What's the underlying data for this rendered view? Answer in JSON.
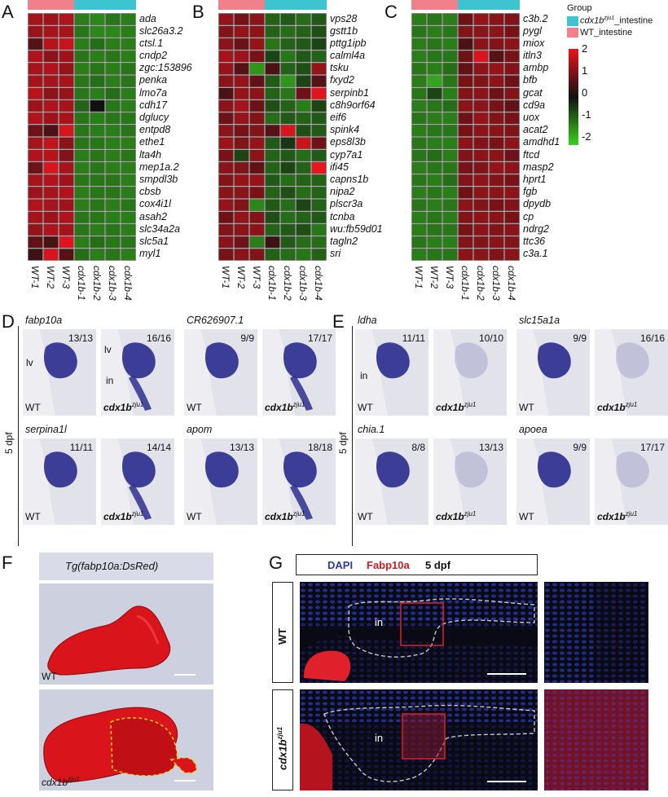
{
  "panels": {
    "A": "A",
    "B": "B",
    "C": "C",
    "D": "D",
    "E": "E",
    "F": "F",
    "G": "G"
  },
  "colors": {
    "mutant_group": "#3ec3d0",
    "wt_group": "#f0808a",
    "high": "#e8141e",
    "mid": "#111111",
    "low": "#3bd01e",
    "ish_stain": "#2e2f8f",
    "dsred": "#d9141a"
  },
  "legend": {
    "group_title": "Group",
    "mutant_label_prefix": "cdx1b",
    "mutant_label_sup": "zju1",
    "mutant_label_suffix": "_intestine",
    "wt_label": "WT_intestine",
    "scale_ticks": [
      "2",
      "1",
      "0",
      "-1",
      "-2"
    ]
  },
  "samples": [
    "WT-1",
    "WT-2",
    "WT-3",
    "cdx1b-1",
    "cdx1b-2",
    "cdx1b-3",
    "cdx1b-4"
  ],
  "group_pattern": [
    "wt",
    "wt",
    "wt",
    "mut",
    "mut",
    "mut",
    "mut"
  ],
  "heatmaps": [
    {
      "id": "A",
      "genes": [
        "ada",
        "slc26a3.2",
        "ctsl.1",
        "cndp2",
        "zgc:153896",
        "penka",
        "lmo7a",
        "cdh17",
        "dglucy",
        "entpd8",
        "ethe1",
        "lta4h",
        "mep1a.2",
        "smpdl3b",
        "cbsb",
        "cox4i1l",
        "asah2",
        "slc34a2a",
        "slc5a1",
        "myl1"
      ],
      "values": [
        [
          1.2,
          1.1,
          1.3,
          -0.9,
          -1.0,
          -0.8,
          -0.9
        ],
        [
          1.1,
          1.2,
          1.2,
          -0.8,
          -1.0,
          -1.0,
          -0.9
        ],
        [
          0.4,
          1.4,
          1.6,
          -0.9,
          -0.7,
          -0.9,
          -0.9
        ],
        [
          1.3,
          0.9,
          1.1,
          -0.8,
          -0.9,
          -0.8,
          -0.9
        ],
        [
          1.2,
          1.3,
          1.0,
          -0.9,
          -0.8,
          -0.9,
          -0.8
        ],
        [
          1.2,
          1.2,
          1.2,
          -0.8,
          -0.7,
          -0.9,
          -0.8
        ],
        [
          1.4,
          0.9,
          1.0,
          -0.8,
          -0.9,
          -0.7,
          -0.9
        ],
        [
          1.1,
          1.3,
          1.2,
          -0.6,
          0.0,
          -0.8,
          -0.9
        ],
        [
          1.3,
          1.1,
          1.2,
          -0.8,
          -0.9,
          -0.8,
          -0.8
        ],
        [
          0.6,
          0.3,
          1.8,
          -0.8,
          -0.9,
          -0.9,
          -0.8
        ],
        [
          1.2,
          1.5,
          0.9,
          -0.8,
          -0.8,
          -0.9,
          -0.9
        ],
        [
          1.3,
          1.4,
          0.8,
          -0.9,
          -0.8,
          -0.9,
          -0.8
        ],
        [
          0.6,
          1.8,
          1.2,
          -0.9,
          -0.8,
          -0.9,
          -0.9
        ],
        [
          1.2,
          1.3,
          1.1,
          -0.8,
          -0.8,
          -0.8,
          -0.9
        ],
        [
          1.1,
          1.2,
          1.3,
          -0.9,
          -0.8,
          -0.8,
          -0.9
        ],
        [
          1.3,
          1.2,
          1.1,
          -0.9,
          -0.8,
          -0.9,
          -0.8
        ],
        [
          1.2,
          1.1,
          1.3,
          -0.8,
          -0.8,
          -0.9,
          -0.9
        ],
        [
          1.0,
          1.3,
          1.2,
          -0.8,
          -0.9,
          -0.8,
          -0.9
        ],
        [
          0.5,
          0.3,
          1.9,
          -0.9,
          -0.7,
          -0.8,
          -0.8
        ],
        [
          0.2,
          1.8,
          0.4,
          -0.7,
          -0.9,
          -0.8,
          -0.9
        ]
      ]
    },
    {
      "id": "B",
      "genes": [
        "vps28",
        "gstt1b",
        "pttg1ipb",
        "calml4a",
        "tsku",
        "fxyd2",
        "serpinb1",
        "c8h9orf64",
        "eif6",
        "spink4",
        "eps8l3b",
        "cyp7a1",
        "ifi45",
        "capns1b",
        "nipa2",
        "plscr3a",
        "tcnba",
        "wu:fb59d01",
        "tagln2",
        "sri"
      ],
      "values": [
        [
          1.0,
          0.7,
          0.9,
          -0.6,
          -0.5,
          -0.7,
          -0.5
        ],
        [
          0.8,
          1.0,
          0.9,
          -0.6,
          -0.7,
          -0.6,
          -0.4
        ],
        [
          0.9,
          0.6,
          1.0,
          -0.8,
          -0.6,
          -0.5,
          -0.3
        ],
        [
          1.2,
          1.1,
          0.7,
          -0.3,
          -0.8,
          -0.5,
          -0.6
        ],
        [
          1.0,
          0.4,
          -1.2,
          0.3,
          -0.6,
          -0.4,
          1.0
        ],
        [
          0.9,
          1.0,
          0.5,
          -0.5,
          -1.2,
          -0.3,
          0.4
        ],
        [
          0.3,
          1.0,
          0.9,
          -0.6,
          -0.8,
          0.6,
          1.9
        ],
        [
          0.9,
          1.2,
          0.6,
          -0.4,
          -0.6,
          -0.9,
          -0.3
        ],
        [
          0.6,
          1.0,
          0.8,
          -0.7,
          -0.5,
          -0.6,
          -0.5
        ],
        [
          0.9,
          0.7,
          0.8,
          0.4,
          1.8,
          -0.4,
          -0.5
        ],
        [
          1.1,
          0.8,
          1.0,
          -0.5,
          -0.2,
          1.6,
          0.6
        ],
        [
          0.7,
          -0.3,
          0.9,
          -0.6,
          -0.5,
          -0.7,
          -0.5
        ],
        [
          0.9,
          0.8,
          0.5,
          -0.6,
          -0.3,
          -0.6,
          2.0
        ],
        [
          0.8,
          1.0,
          1.0,
          -0.5,
          -0.7,
          -0.6,
          -0.6
        ],
        [
          0.9,
          0.9,
          0.7,
          -0.6,
          -0.4,
          -0.7,
          -0.6
        ],
        [
          1.0,
          0.8,
          -1.0,
          -0.5,
          -0.7,
          -0.3,
          -0.6
        ],
        [
          0.6,
          1.0,
          0.8,
          -0.4,
          -0.7,
          -0.6,
          -0.5
        ],
        [
          0.8,
          0.9,
          0.9,
          -0.6,
          -0.5,
          -0.4,
          -0.8
        ],
        [
          0.9,
          0.6,
          -0.9,
          0.2,
          -0.5,
          -0.7,
          -0.7
        ],
        [
          0.7,
          0.9,
          0.8,
          -0.6,
          -0.7,
          -0.8,
          -0.6
        ]
      ]
    },
    {
      "id": "C",
      "genes": [
        "c3b.2",
        "pygl",
        "miox",
        "itln3",
        "ambp",
        "bfb",
        "gcat",
        "cd9a",
        "uox",
        "acat2",
        "amdhd1",
        "ftcd",
        "masp2",
        "hprt1",
        "fgb",
        "dpydb",
        "cp",
        "ndrg2",
        "ttc36",
        "c3a.1"
      ],
      "values": [
        [
          -0.9,
          -0.8,
          -0.9,
          0.6,
          1.0,
          0.9,
          0.8
        ],
        [
          -0.8,
          -0.9,
          -0.8,
          0.8,
          0.9,
          0.9,
          0.7
        ],
        [
          -0.9,
          -0.8,
          -0.9,
          0.3,
          0.9,
          0.8,
          0.9
        ],
        [
          -0.9,
          -0.8,
          -0.8,
          0.6,
          1.8,
          0.4,
          0.7
        ],
        [
          -0.8,
          -0.9,
          -0.7,
          0.5,
          0.9,
          1.0,
          0.8
        ],
        [
          -0.9,
          -1.4,
          -0.8,
          0.7,
          0.8,
          0.9,
          0.6
        ],
        [
          -0.8,
          -0.3,
          -0.9,
          0.8,
          0.9,
          0.6,
          0.8
        ],
        [
          -0.9,
          -0.8,
          -0.7,
          0.9,
          0.9,
          0.7,
          0.5
        ],
        [
          -0.8,
          -0.9,
          -0.9,
          0.6,
          1.0,
          0.8,
          0.7
        ],
        [
          -0.9,
          -0.8,
          -0.8,
          0.7,
          0.9,
          0.9,
          0.8
        ],
        [
          -0.8,
          -0.9,
          -0.9,
          0.9,
          0.8,
          0.7,
          0.9
        ],
        [
          -0.8,
          -0.7,
          -0.9,
          0.8,
          0.9,
          0.9,
          0.6
        ],
        [
          -0.9,
          -0.8,
          -0.8,
          0.7,
          0.8,
          1.0,
          0.9
        ],
        [
          -0.8,
          -0.9,
          -0.7,
          0.8,
          0.9,
          0.8,
          0.7
        ],
        [
          -0.9,
          -0.8,
          -0.9,
          0.6,
          0.9,
          0.9,
          0.9
        ],
        [
          -0.8,
          -0.9,
          -0.8,
          0.9,
          0.8,
          0.7,
          0.8
        ],
        [
          -0.9,
          -0.8,
          -0.9,
          0.8,
          0.9,
          0.9,
          0.7
        ],
        [
          -0.9,
          -0.8,
          -0.8,
          0.7,
          0.9,
          0.8,
          0.9
        ],
        [
          -0.8,
          -0.9,
          -0.9,
          0.8,
          0.8,
          0.9,
          0.8
        ],
        [
          -0.9,
          -0.8,
          -0.8,
          0.9,
          0.9,
          0.8,
          0.9
        ]
      ]
    }
  ],
  "panel_D": {
    "dpf_label": "5 dpf",
    "tiles": [
      {
        "gene": "fabp10a",
        "frac": "13/13",
        "geno": "WT",
        "mut": false
      },
      {
        "gene": "",
        "frac": "16/16",
        "geno": "cdx1b",
        "mut": true
      },
      {
        "gene": "CR626907.1",
        "frac": "9/9",
        "geno": "WT",
        "mut": false
      },
      {
        "gene": "",
        "frac": "17/17",
        "geno": "cdx1b",
        "mut": true
      },
      {
        "gene": "serpina1l",
        "frac": "11/11",
        "geno": "WT",
        "mut": false
      },
      {
        "gene": "",
        "frac": "14/14",
        "geno": "cdx1b",
        "mut": true
      },
      {
        "gene": "apom",
        "frac": "13/13",
        "geno": "WT",
        "mut": false
      },
      {
        "gene": "",
        "frac": "18/18",
        "geno": "cdx1b",
        "mut": true
      }
    ],
    "labels": {
      "lv": "lv",
      "in": "in"
    }
  },
  "panel_E": {
    "dpf_label": "5 dpf",
    "tiles": [
      {
        "gene": "ldha",
        "frac": "11/11",
        "geno": "WT",
        "mut": false
      },
      {
        "gene": "",
        "frac": "10/10",
        "geno": "cdx1b",
        "mut": true
      },
      {
        "gene": "slc15a1a",
        "frac": "9/9",
        "geno": "WT",
        "mut": false
      },
      {
        "gene": "",
        "frac": "16/16",
        "geno": "cdx1b",
        "mut": true
      },
      {
        "gene": "chia.1",
        "frac": "8/8",
        "geno": "WT",
        "mut": false
      },
      {
        "gene": "",
        "frac": "13/13",
        "geno": "cdx1b",
        "mut": true
      },
      {
        "gene": "apoea",
        "frac": "9/9",
        "geno": "WT",
        "mut": false
      },
      {
        "gene": "",
        "frac": "17/17",
        "geno": "cdx1b",
        "mut": true
      }
    ],
    "labels": {
      "in": "in"
    }
  },
  "geno_sup": "zju1",
  "panel_F": {
    "title": "Tg(fabp10a:DsRed)",
    "wt": "WT",
    "mut": "cdx1b",
    "mut_sup": "zju1"
  },
  "panel_G": {
    "dapi": "DAPI",
    "fabp": "Fabp10a",
    "dpf": "5 dpf",
    "row_wt": "WT",
    "row_mut": "cdx1b",
    "row_mut_sup": "zju1",
    "in": "in"
  }
}
